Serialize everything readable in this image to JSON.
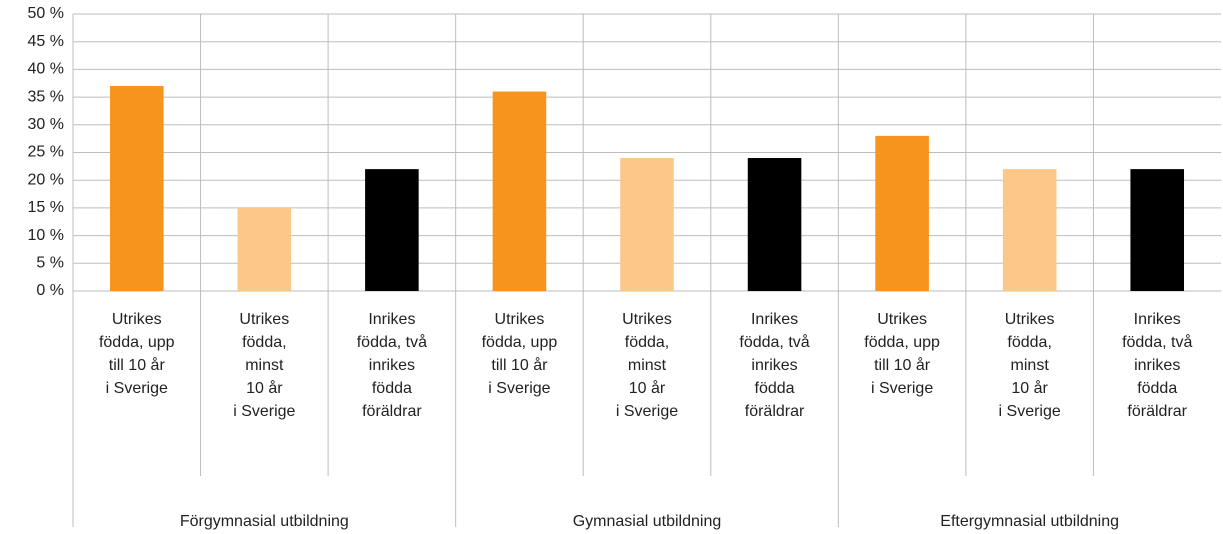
{
  "chart_data": {
    "type": "bar",
    "categories": [
      "Utrikes\nfödda, upp\ntill 10 år\ni Sverige",
      "Utrikes\nfödda,\nminst\n10 år\ni Sverige",
      "Inrikes\nfödda, två\ninrikes\nfödda\nföräldrar",
      "Utrikes\nfödda, upp\ntill 10 år\ni Sverige",
      "Utrikes\nfödda,\nminst\n10 år\ni Sverige",
      "Inrikes\nfödda, två\ninrikes\nfödda\nföräldrar",
      "Utrikes\nfödda, upp\ntill 10 år\ni Sverige",
      "Utrikes\nfödda,\nminst\n10 år\ni Sverige",
      "Inrikes\nfödda, två\ninrikes\nfödda\nföräldrar"
    ],
    "groups": [
      "Förgymnasial utbildning",
      "Gymnasial utbildning",
      "Eftergymnasial utbildning"
    ],
    "values": [
      37,
      15,
      22,
      36,
      24,
      24,
      28,
      22,
      22
    ],
    "colors": [
      "#f7941d",
      "#fcc88a",
      "#000000",
      "#f7941d",
      "#fcc88a",
      "#000000",
      "#f7941d",
      "#fcc88a",
      "#000000"
    ],
    "ylim": [
      0,
      50
    ],
    "yticks": [
      {
        "value": 0,
        "label": "0 %"
      },
      {
        "value": 5,
        "label": "5 %"
      },
      {
        "value": 10,
        "label": "10 %"
      },
      {
        "value": 15,
        "label": "15 %"
      },
      {
        "value": 20,
        "label": "20 %"
      },
      {
        "value": 25,
        "label": "25 %"
      },
      {
        "value": 30,
        "label": "30 %"
      },
      {
        "value": 35,
        "label": "35 %"
      },
      {
        "value": 40,
        "label": "40 %"
      },
      {
        "value": 45,
        "label": "45 %"
      },
      {
        "value": 50,
        "label": "50 %"
      }
    ],
    "grid": true
  }
}
